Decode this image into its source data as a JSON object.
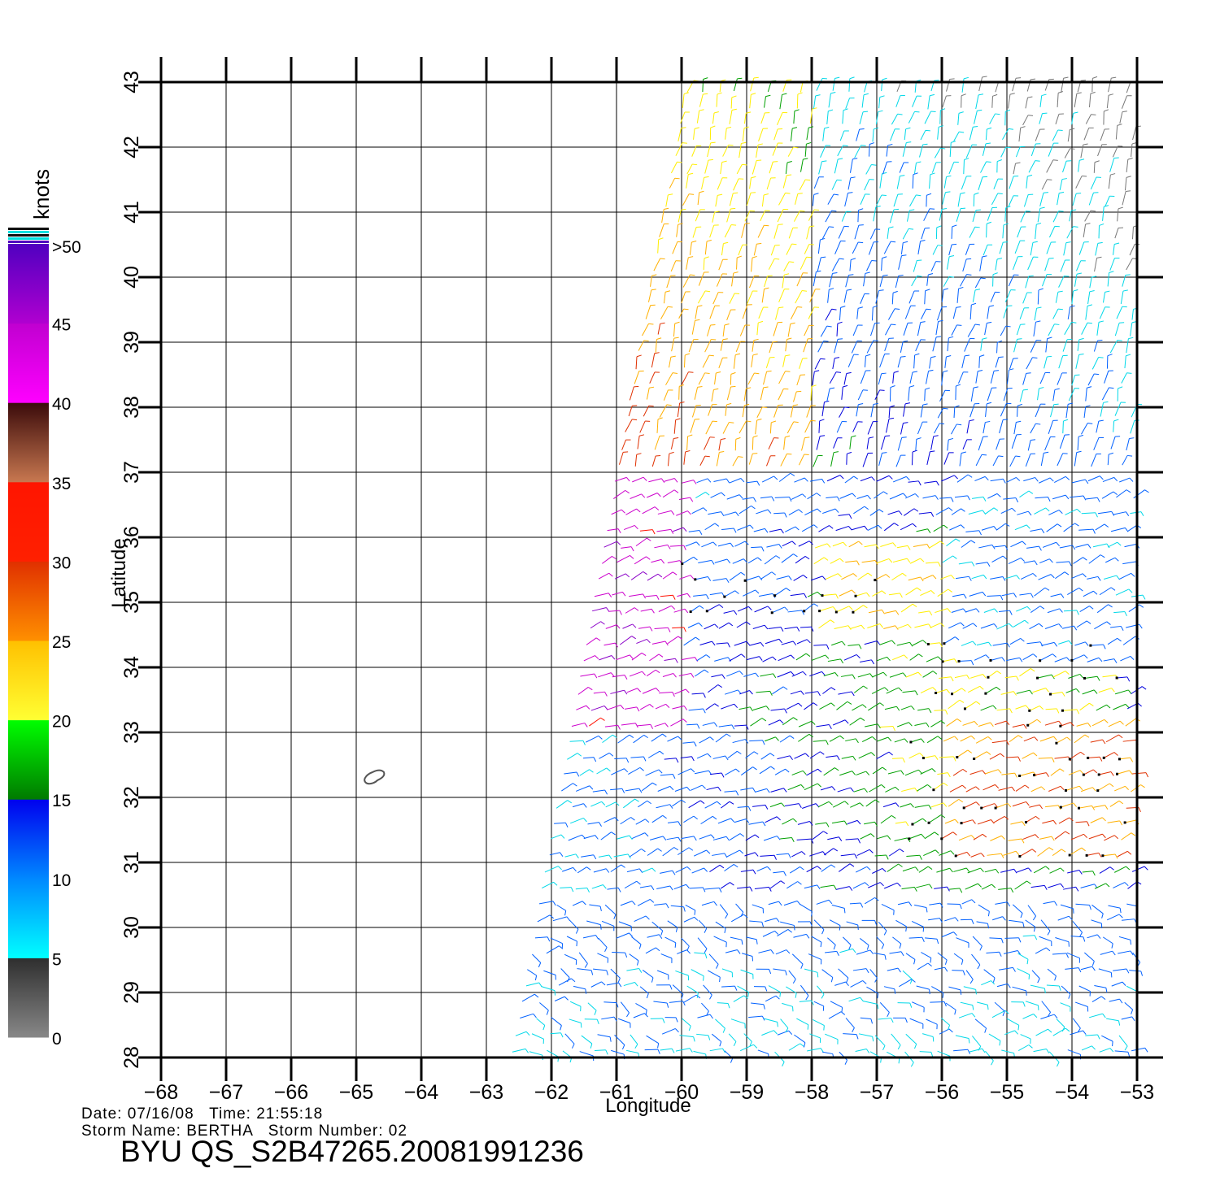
{
  "plot": {
    "x_axis_label": "Longitude",
    "y_axis_label": "Latitude",
    "lon_range": [
      -68,
      -53
    ],
    "lat_range": [
      28,
      43
    ],
    "lon_ticks": [
      "−68",
      "−67",
      "−66",
      "−65",
      "−64",
      "−63",
      "−62",
      "−61",
      "−60",
      "−59",
      "−58",
      "−57",
      "−56",
      "−55",
      "−54",
      "−53"
    ],
    "lat_ticks": [
      "28",
      "29",
      "30",
      "31",
      "32",
      "33",
      "34",
      "35",
      "36",
      "37",
      "38",
      "39",
      "40",
      "41",
      "42",
      "43"
    ],
    "grid": true
  },
  "colorbar": {
    "units": "knots",
    "labels": [
      "0",
      "5",
      "10",
      "15",
      "20",
      "25",
      "30",
      "35",
      "40",
      "45",
      ">50"
    ],
    "segments": [
      {
        "range": "0-5",
        "from": "#888888",
        "to": "#2e2e2e"
      },
      {
        "range": "5-10",
        "from": "#00ffff",
        "to": "#0088ff"
      },
      {
        "range": "10-15",
        "from": "#0088ff",
        "to": "#0000ee"
      },
      {
        "range": "15-20",
        "from": "#007a00",
        "to": "#00ff00"
      },
      {
        "range": "20-25",
        "from": "#ffff33",
        "to": "#ffc000"
      },
      {
        "range": "25-30",
        "from": "#ff9000",
        "to": "#e03000"
      },
      {
        "range": "30-35",
        "from": "#ff2000",
        "to": "#ff1500"
      },
      {
        "range": "35-40",
        "from": "#c87850",
        "to": "#3a0a0a"
      },
      {
        "range": "40-45",
        "from": "#ff00ff",
        "to": "#c000d0"
      },
      {
        "range": "45-50",
        "from": "#b000d0",
        "to": "#5000c0"
      }
    ]
  },
  "island_label": "Bermuda outline",
  "info": {
    "line1": "Date: 07/16/08   Time: 21:55:18",
    "line2": "Storm Name: BERTHA   Storm Number: 02"
  },
  "footer_title": "BYU QS_S2B47265.20081991236"
}
